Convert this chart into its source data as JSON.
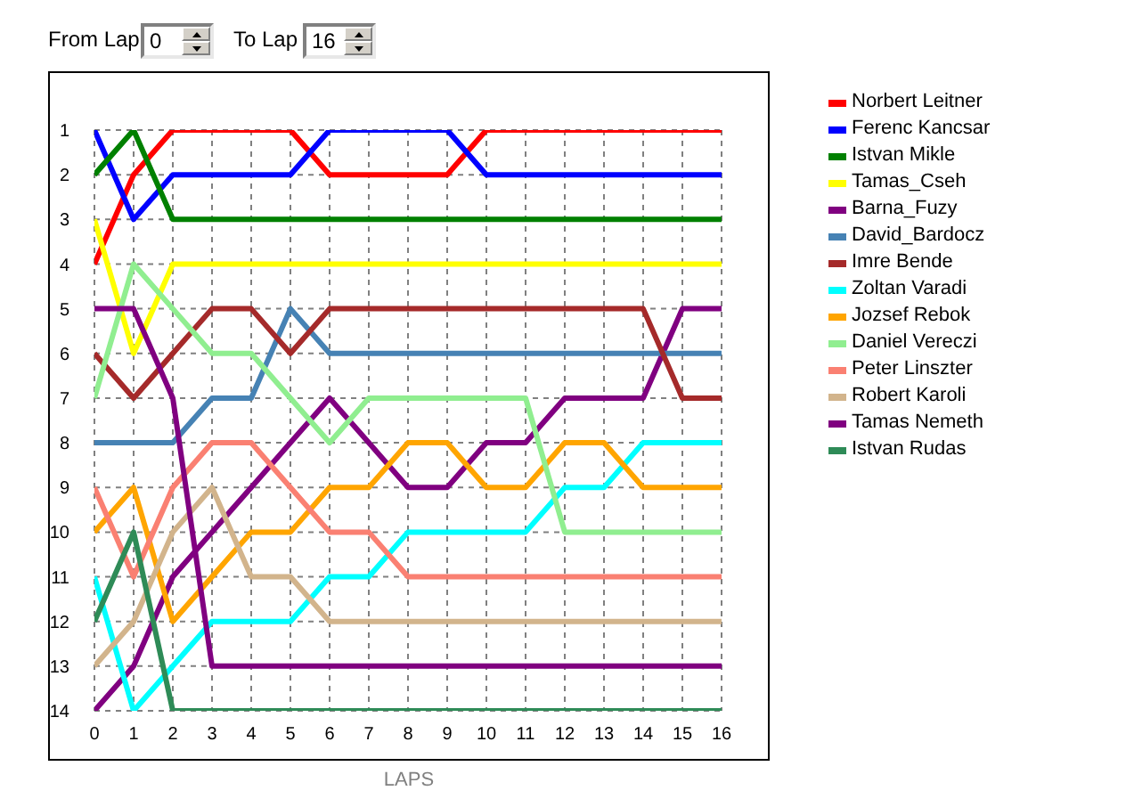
{
  "chart_data": {
    "type": "line",
    "xlabel": "LAPS",
    "annotations": [
      "From Lap",
      "0",
      "To Lap",
      "16"
    ],
    "x": [
      0,
      1,
      2,
      3,
      4,
      5,
      6,
      7,
      8,
      9,
      10,
      11,
      12,
      13,
      14,
      15,
      16
    ],
    "xlim": [
      0,
      16
    ],
    "xticks": [
      0,
      1,
      2,
      3,
      4,
      5,
      6,
      7,
      8,
      9,
      10,
      11,
      12,
      13,
      14,
      15,
      16
    ],
    "ylim": [
      14,
      1
    ],
    "yticks": [
      1,
      2,
      3,
      4,
      5,
      6,
      7,
      8,
      9,
      10,
      11,
      12,
      13,
      14
    ],
    "grid": true,
    "legend": "top right",
    "series": [
      {
        "name": "Norbert Leitner",
        "color": "#ff0000",
        "values": [
          4,
          2,
          1,
          1,
          1,
          1,
          2,
          2,
          2,
          2,
          1,
          1,
          1,
          1,
          1,
          1,
          1
        ]
      },
      {
        "name": "Ferenc Kancsar",
        "color": "#0000ff",
        "values": [
          1,
          3,
          2,
          2,
          2,
          2,
          1,
          1,
          1,
          1,
          2,
          2,
          2,
          2,
          2,
          2,
          2
        ]
      },
      {
        "name": "Istvan Mikle",
        "color": "#008000",
        "values": [
          2,
          1,
          3,
          3,
          3,
          3,
          3,
          3,
          3,
          3,
          3,
          3,
          3,
          3,
          3,
          3,
          3
        ]
      },
      {
        "name": "Tamas_Cseh",
        "color": "#ffff00",
        "values": [
          3,
          6,
          4,
          4,
          4,
          4,
          4,
          4,
          4,
          4,
          4,
          4,
          4,
          4,
          4,
          4,
          4
        ]
      },
      {
        "name": "Barna_Fuzy",
        "color": "#800080",
        "values": [
          14,
          13,
          11,
          10,
          9,
          8,
          7,
          8,
          9,
          9,
          8,
          8,
          7,
          7,
          7,
          5,
          5
        ]
      },
      {
        "name": "David_Bardocz",
        "color": "#4682b4",
        "values": [
          8,
          8,
          8,
          7,
          7,
          5,
          6,
          6,
          6,
          6,
          6,
          6,
          6,
          6,
          6,
          6,
          6
        ]
      },
      {
        "name": "Imre Bende",
        "color": "#a52a2a",
        "values": [
          6,
          7,
          6,
          5,
          5,
          6,
          5,
          5,
          5,
          5,
          5,
          5,
          5,
          5,
          5,
          7,
          7
        ]
      },
      {
        "name": "Zoltan Varadi",
        "color": "#00ffff",
        "values": [
          11,
          14,
          13,
          12,
          12,
          12,
          11,
          11,
          10,
          10,
          10,
          10,
          9,
          9,
          8,
          8,
          8
        ]
      },
      {
        "name": "Jozsef Rebok",
        "color": "#ffa500",
        "values": [
          10,
          9,
          12,
          11,
          10,
          10,
          9,
          9,
          8,
          8,
          9,
          9,
          8,
          8,
          9,
          9,
          9
        ]
      },
      {
        "name": "Daniel Vereczi",
        "color": "#90ee90",
        "values": [
          7,
          4,
          5,
          6,
          6,
          7,
          8,
          7,
          7,
          7,
          7,
          7,
          10,
          10,
          10,
          10,
          10
        ]
      },
      {
        "name": "Peter Linszter",
        "color": "#fa8072",
        "values": [
          9,
          11,
          9,
          8,
          8,
          9,
          10,
          10,
          11,
          11,
          11,
          11,
          11,
          11,
          11,
          11,
          11
        ]
      },
      {
        "name": "Robert Karoli",
        "color": "#d2b48c",
        "values": [
          13,
          12,
          10,
          9,
          11,
          11,
          12,
          12,
          12,
          12,
          12,
          12,
          12,
          12,
          12,
          12,
          12
        ]
      },
      {
        "name": "Tamas Nemeth",
        "color": "#800080",
        "values": [
          5,
          5,
          7,
          13,
          13,
          13,
          13,
          13,
          13,
          13,
          13,
          13,
          13,
          13,
          13,
          13,
          13
        ]
      },
      {
        "name": "Istvan Rudas",
        "color": "#2e8b57",
        "values": [
          12,
          10,
          14,
          14,
          14,
          14,
          14,
          14,
          14,
          14,
          14,
          14,
          14,
          14,
          14,
          14,
          14
        ]
      }
    ]
  }
}
